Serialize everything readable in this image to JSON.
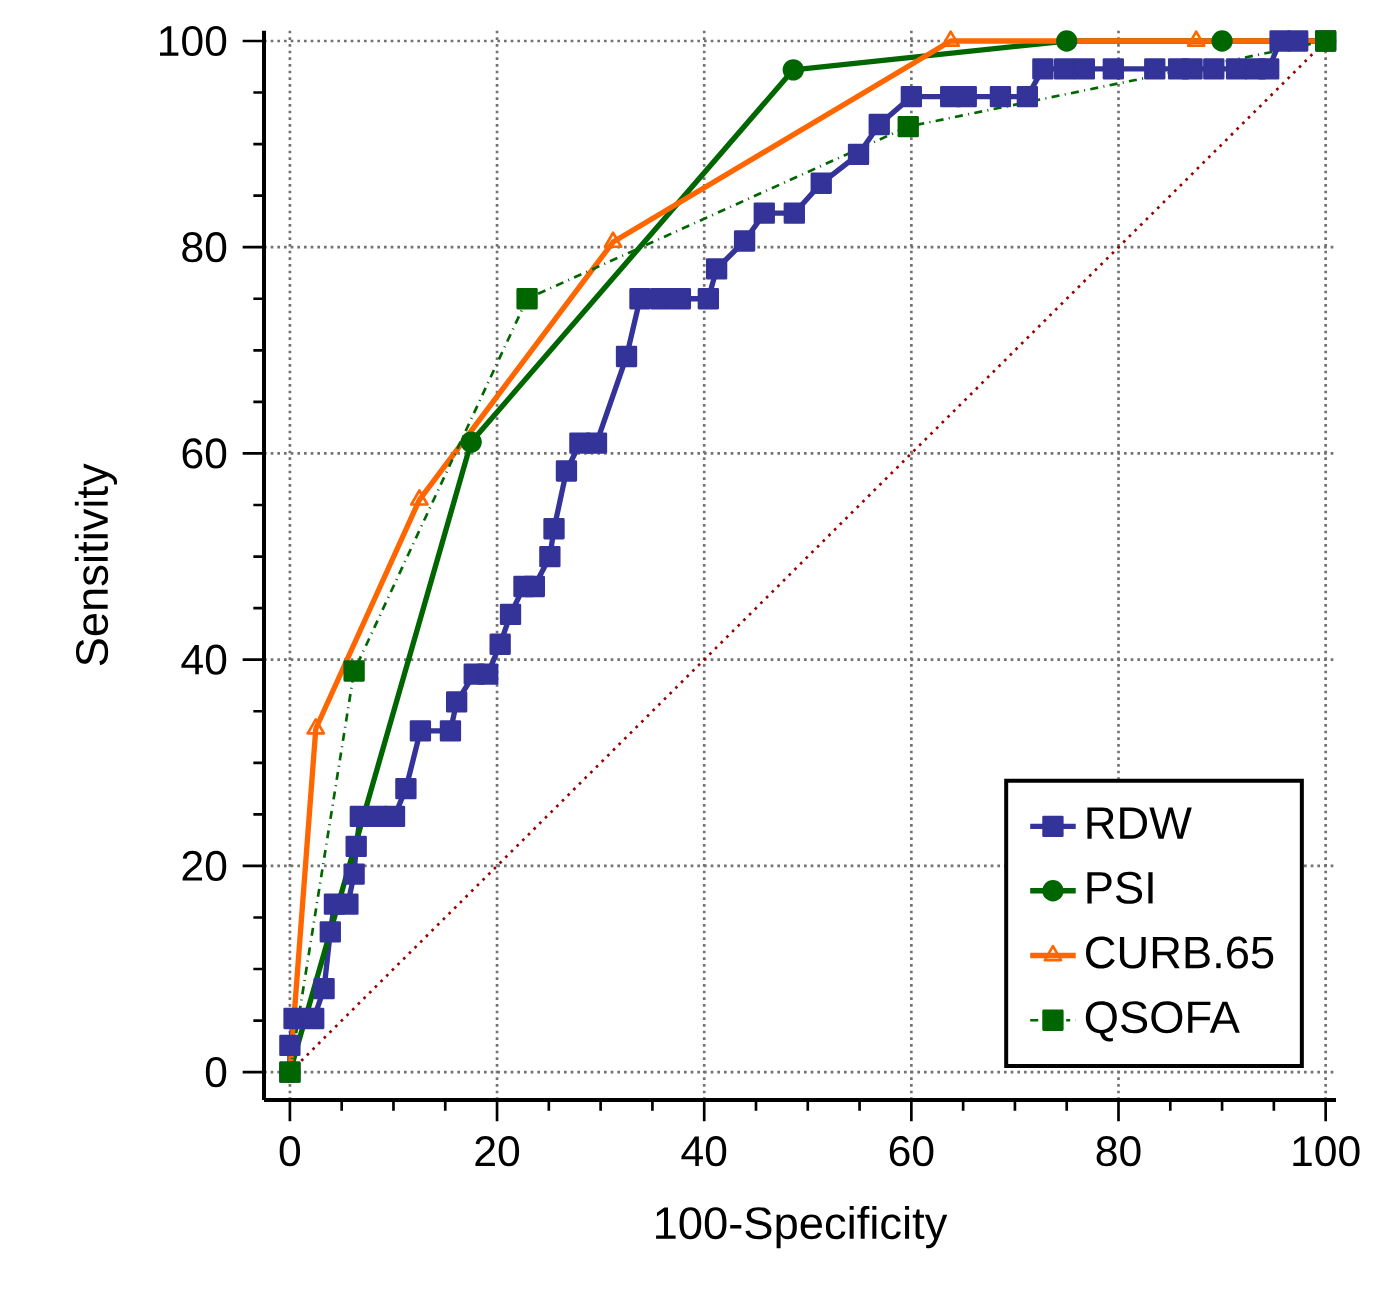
{
  "chart_data": {
    "type": "line",
    "xlabel": "100-Specificity",
    "ylabel": "Sensitivity",
    "series": [
      {
        "name": "RDW",
        "color": "#333399",
        "marker": "square",
        "line_style": "solid",
        "x": [
          0,
          0,
          0.4,
          2.3,
          3.3,
          3.9,
          4.3,
          5.6,
          6.2,
          6.4,
          6.8,
          8.4,
          10.1,
          11.2,
          12.6,
          15.5,
          16.1,
          17.8,
          19.1,
          20.3,
          21.3,
          22.6,
          23.6,
          25.1,
          25.5,
          26.7,
          28.0,
          29.6,
          32.5,
          33.8,
          35.8,
          37.7,
          40.4,
          41.2,
          43.9,
          45.8,
          48.7,
          51.3,
          54.9,
          56.9,
          60.0,
          63.8,
          65.3,
          68.6,
          71.2,
          72.7,
          74.8,
          76.7,
          79.5,
          83.5,
          85.8,
          87.1,
          89.2,
          91.4,
          93.2,
          94.5,
          95.6,
          97.3,
          100
        ],
        "values": [
          0,
          2.6,
          5.2,
          5.2,
          8.1,
          13.6,
          16.3,
          16.3,
          19.2,
          21.9,
          24.8,
          24.8,
          24.8,
          27.5,
          33.1,
          33.1,
          35.9,
          38.6,
          38.6,
          41.5,
          44.4,
          47.1,
          47.1,
          50.0,
          52.7,
          58.3,
          61.0,
          61.0,
          69.4,
          75.0,
          75.0,
          75.0,
          75.0,
          77.9,
          80.6,
          83.3,
          83.3,
          86.2,
          89.0,
          91.9,
          94.6,
          94.6,
          94.6,
          94.6,
          94.6,
          97.3,
          97.3,
          97.3,
          97.3,
          97.3,
          97.3,
          97.3,
          97.3,
          97.3,
          97.3,
          97.3,
          100,
          100,
          100
        ]
      },
      {
        "name": "PSI",
        "color": "#006600",
        "marker": "circle",
        "line_style": "solid",
        "x": [
          0,
          17.5,
          48.6,
          75,
          90,
          100
        ],
        "values": [
          0,
          61.1,
          97.2,
          100,
          100,
          100
        ]
      },
      {
        "name": "CURB.65",
        "color": "#ff6600",
        "marker": "triangle",
        "line_style": "solid",
        "x": [
          0,
          2.5,
          12.5,
          31.2,
          63.8,
          87.5,
          100
        ],
        "values": [
          0,
          33.3,
          55.5,
          80.5,
          100,
          100,
          100
        ]
      },
      {
        "name": "QSOFA",
        "color": "#006600",
        "marker": "square",
        "line_style": "dashdotted",
        "x": [
          0,
          6.2,
          22.9,
          59.7,
          100
        ],
        "values": [
          0,
          38.9,
          75.0,
          91.7,
          100
        ]
      },
      {
        "color": "#990000",
        "marker": "none",
        "line_style": "dotted",
        "x": [
          0,
          100
        ],
        "values": [
          0,
          100
        ]
      }
    ],
    "xlim": [
      -2.5,
      101
    ],
    "ylim": [
      -2.7,
      101
    ],
    "xticks": [
      0,
      20,
      40,
      60,
      80,
      100
    ],
    "yticks": [
      0,
      20,
      40,
      60,
      80,
      100
    ],
    "grid": true,
    "legend": "bottom right"
  }
}
